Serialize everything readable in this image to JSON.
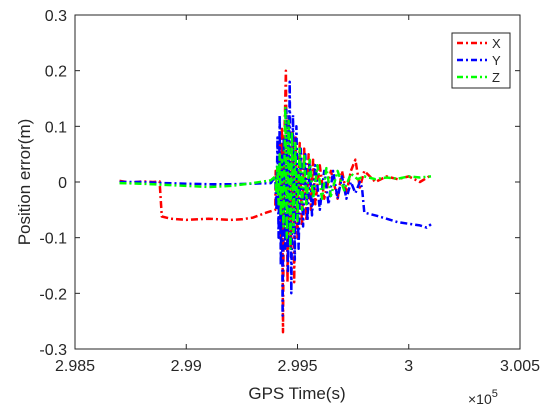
{
  "chart_data": {
    "type": "line",
    "title": "",
    "xlabel": "GPS Time(s)",
    "ylabel": "Position error(m)",
    "x_multiplier_label": "×10",
    "x_multiplier_exponent": "5",
    "xlim": [
      298500,
      300500
    ],
    "ylim": [
      -0.3,
      0.3
    ],
    "x_ticks": [
      298500,
      299000,
      299500,
      300000,
      300500
    ],
    "x_tick_labels": [
      "2.985",
      "2.99",
      "2.995",
      "3",
      "3.005"
    ],
    "y_ticks": [
      -0.3,
      -0.2,
      -0.1,
      0,
      0.1,
      0.2,
      0.3
    ],
    "y_tick_labels": [
      "-0.3",
      "-0.2",
      "-0.1",
      "0",
      "0.1",
      "0.2",
      "0.3"
    ],
    "grid": false,
    "legend_position": "top-right",
    "series": [
      {
        "name": "X",
        "color": "#ff0000",
        "line_style": "dash-dot",
        "points": [
          [
            298700,
            0.002
          ],
          [
            298750,
            -0.001
          ],
          [
            298800,
            0.001
          ],
          [
            298850,
            0.0
          ],
          [
            298880,
            0.001
          ],
          [
            298890,
            -0.062
          ],
          [
            298930,
            -0.066
          ],
          [
            299000,
            -0.068
          ],
          [
            299100,
            -0.066
          ],
          [
            299200,
            -0.068
          ],
          [
            299250,
            -0.067
          ],
          [
            299300,
            -0.064
          ],
          [
            299360,
            -0.055
          ],
          [
            299400,
            -0.05
          ],
          [
            299402,
            0.02
          ],
          [
            299405,
            -0.01
          ],
          [
            299410,
            0.03
          ],
          [
            299415,
            -0.05
          ],
          [
            299420,
            0.07
          ],
          [
            299425,
            -0.12
          ],
          [
            299430,
            0.1
          ],
          [
            299435,
            -0.27
          ],
          [
            299440,
            0.05
          ],
          [
            299448,
            0.2
          ],
          [
            299455,
            -0.18
          ],
          [
            299462,
            0.12
          ],
          [
            299470,
            -0.12
          ],
          [
            299478,
            0.09
          ],
          [
            299485,
            -0.18
          ],
          [
            299492,
            0.08
          ],
          [
            299500,
            -0.1
          ],
          [
            299510,
            0.07
          ],
          [
            299520,
            -0.08
          ],
          [
            299530,
            0.06
          ],
          [
            299540,
            -0.07
          ],
          [
            299550,
            0.05
          ],
          [
            299560,
            -0.05
          ],
          [
            299570,
            0.04
          ],
          [
            299580,
            -0.04
          ],
          [
            299600,
            0.03
          ],
          [
            299620,
            -0.03
          ],
          [
            299650,
            0.02
          ],
          [
            299680,
            -0.03
          ],
          [
            299700,
            0.02
          ],
          [
            299720,
            -0.02
          ],
          [
            299740,
            0.02
          ],
          [
            299760,
            0.04
          ],
          [
            299780,
            -0.01
          ],
          [
            299800,
            0.02
          ],
          [
            299850,
            0.0
          ],
          [
            299900,
            0.01
          ],
          [
            299950,
            0.005
          ],
          [
            300000,
            0.01
          ],
          [
            300050,
            0.0
          ],
          [
            300100,
            0.012
          ]
        ]
      },
      {
        "name": "Y",
        "color": "#0000ff",
        "line_style": "dash-dot",
        "points": [
          [
            298700,
            0.0
          ],
          [
            298800,
            0.0
          ],
          [
            298900,
            -0.002
          ],
          [
            299000,
            -0.003
          ],
          [
            299100,
            -0.004
          ],
          [
            299200,
            -0.004
          ],
          [
            299300,
            -0.003
          ],
          [
            299380,
            -0.002
          ],
          [
            299400,
            0.01
          ],
          [
            299405,
            -0.05
          ],
          [
            299410,
            0.08
          ],
          [
            299415,
            -0.1
          ],
          [
            299420,
            0.12
          ],
          [
            299425,
            -0.15
          ],
          [
            299430,
            0.05
          ],
          [
            299433,
            -0.24
          ],
          [
            299438,
            0.08
          ],
          [
            299445,
            -0.12
          ],
          [
            299450,
            0.13
          ],
          [
            299457,
            -0.16
          ],
          [
            299465,
            0.18
          ],
          [
            299472,
            -0.2
          ],
          [
            299480,
            0.12
          ],
          [
            299488,
            -0.14
          ],
          [
            299495,
            0.1
          ],
          [
            299505,
            -0.12
          ],
          [
            299515,
            0.06
          ],
          [
            299525,
            -0.08
          ],
          [
            299535,
            0.05
          ],
          [
            299545,
            -0.07
          ],
          [
            299555,
            0.04
          ],
          [
            299565,
            -0.06
          ],
          [
            299580,
            0.03
          ],
          [
            299600,
            -0.05
          ],
          [
            299620,
            0.02
          ],
          [
            299640,
            -0.04
          ],
          [
            299660,
            0.02
          ],
          [
            299680,
            -0.03
          ],
          [
            299700,
            0.01
          ],
          [
            299720,
            -0.03
          ],
          [
            299740,
            0.0
          ],
          [
            299760,
            -0.02
          ],
          [
            299780,
            0.0
          ],
          [
            299790,
            -0.01
          ],
          [
            299800,
            -0.055
          ],
          [
            299850,
            -0.06
          ],
          [
            299900,
            -0.066
          ],
          [
            299950,
            -0.072
          ],
          [
            300000,
            -0.075
          ],
          [
            300050,
            -0.078
          ],
          [
            300080,
            -0.082
          ],
          [
            300100,
            -0.076
          ]
        ]
      },
      {
        "name": "Z",
        "color": "#00ff00",
        "line_style": "dash-dot",
        "points": [
          [
            298700,
            -0.002
          ],
          [
            298800,
            -0.003
          ],
          [
            298900,
            -0.005
          ],
          [
            299000,
            -0.007
          ],
          [
            299100,
            -0.009
          ],
          [
            299200,
            -0.007
          ],
          [
            299300,
            -0.002
          ],
          [
            299380,
            0.003
          ],
          [
            299400,
            0.01
          ],
          [
            299405,
            -0.02
          ],
          [
            299410,
            0.03
          ],
          [
            299415,
            -0.04
          ],
          [
            299420,
            0.05
          ],
          [
            299425,
            -0.06
          ],
          [
            299430,
            0.04
          ],
          [
            299437,
            -0.08
          ],
          [
            299445,
            0.135
          ],
          [
            299452,
            -0.1
          ],
          [
            299460,
            0.11
          ],
          [
            299468,
            -0.12
          ],
          [
            299475,
            0.09
          ],
          [
            299482,
            -0.09
          ],
          [
            299490,
            0.07
          ],
          [
            299500,
            -0.07
          ],
          [
            299510,
            0.06
          ],
          [
            299520,
            -0.05
          ],
          [
            299530,
            0.05
          ],
          [
            299540,
            -0.04
          ],
          [
            299555,
            0.04
          ],
          [
            299570,
            -0.03
          ],
          [
            299590,
            0.03
          ],
          [
            299610,
            -0.03
          ],
          [
            299630,
            0.025
          ],
          [
            299650,
            -0.025
          ],
          [
            299680,
            0.02
          ],
          [
            299710,
            -0.015
          ],
          [
            299740,
            0.015
          ],
          [
            299770,
            0.005
          ],
          [
            299800,
            0.01
          ],
          [
            299850,
            0.005
          ],
          [
            299900,
            0.008
          ],
          [
            299950,
            0.006
          ],
          [
            300000,
            0.01
          ],
          [
            300050,
            0.008
          ],
          [
            300100,
            0.01
          ]
        ]
      }
    ]
  }
}
